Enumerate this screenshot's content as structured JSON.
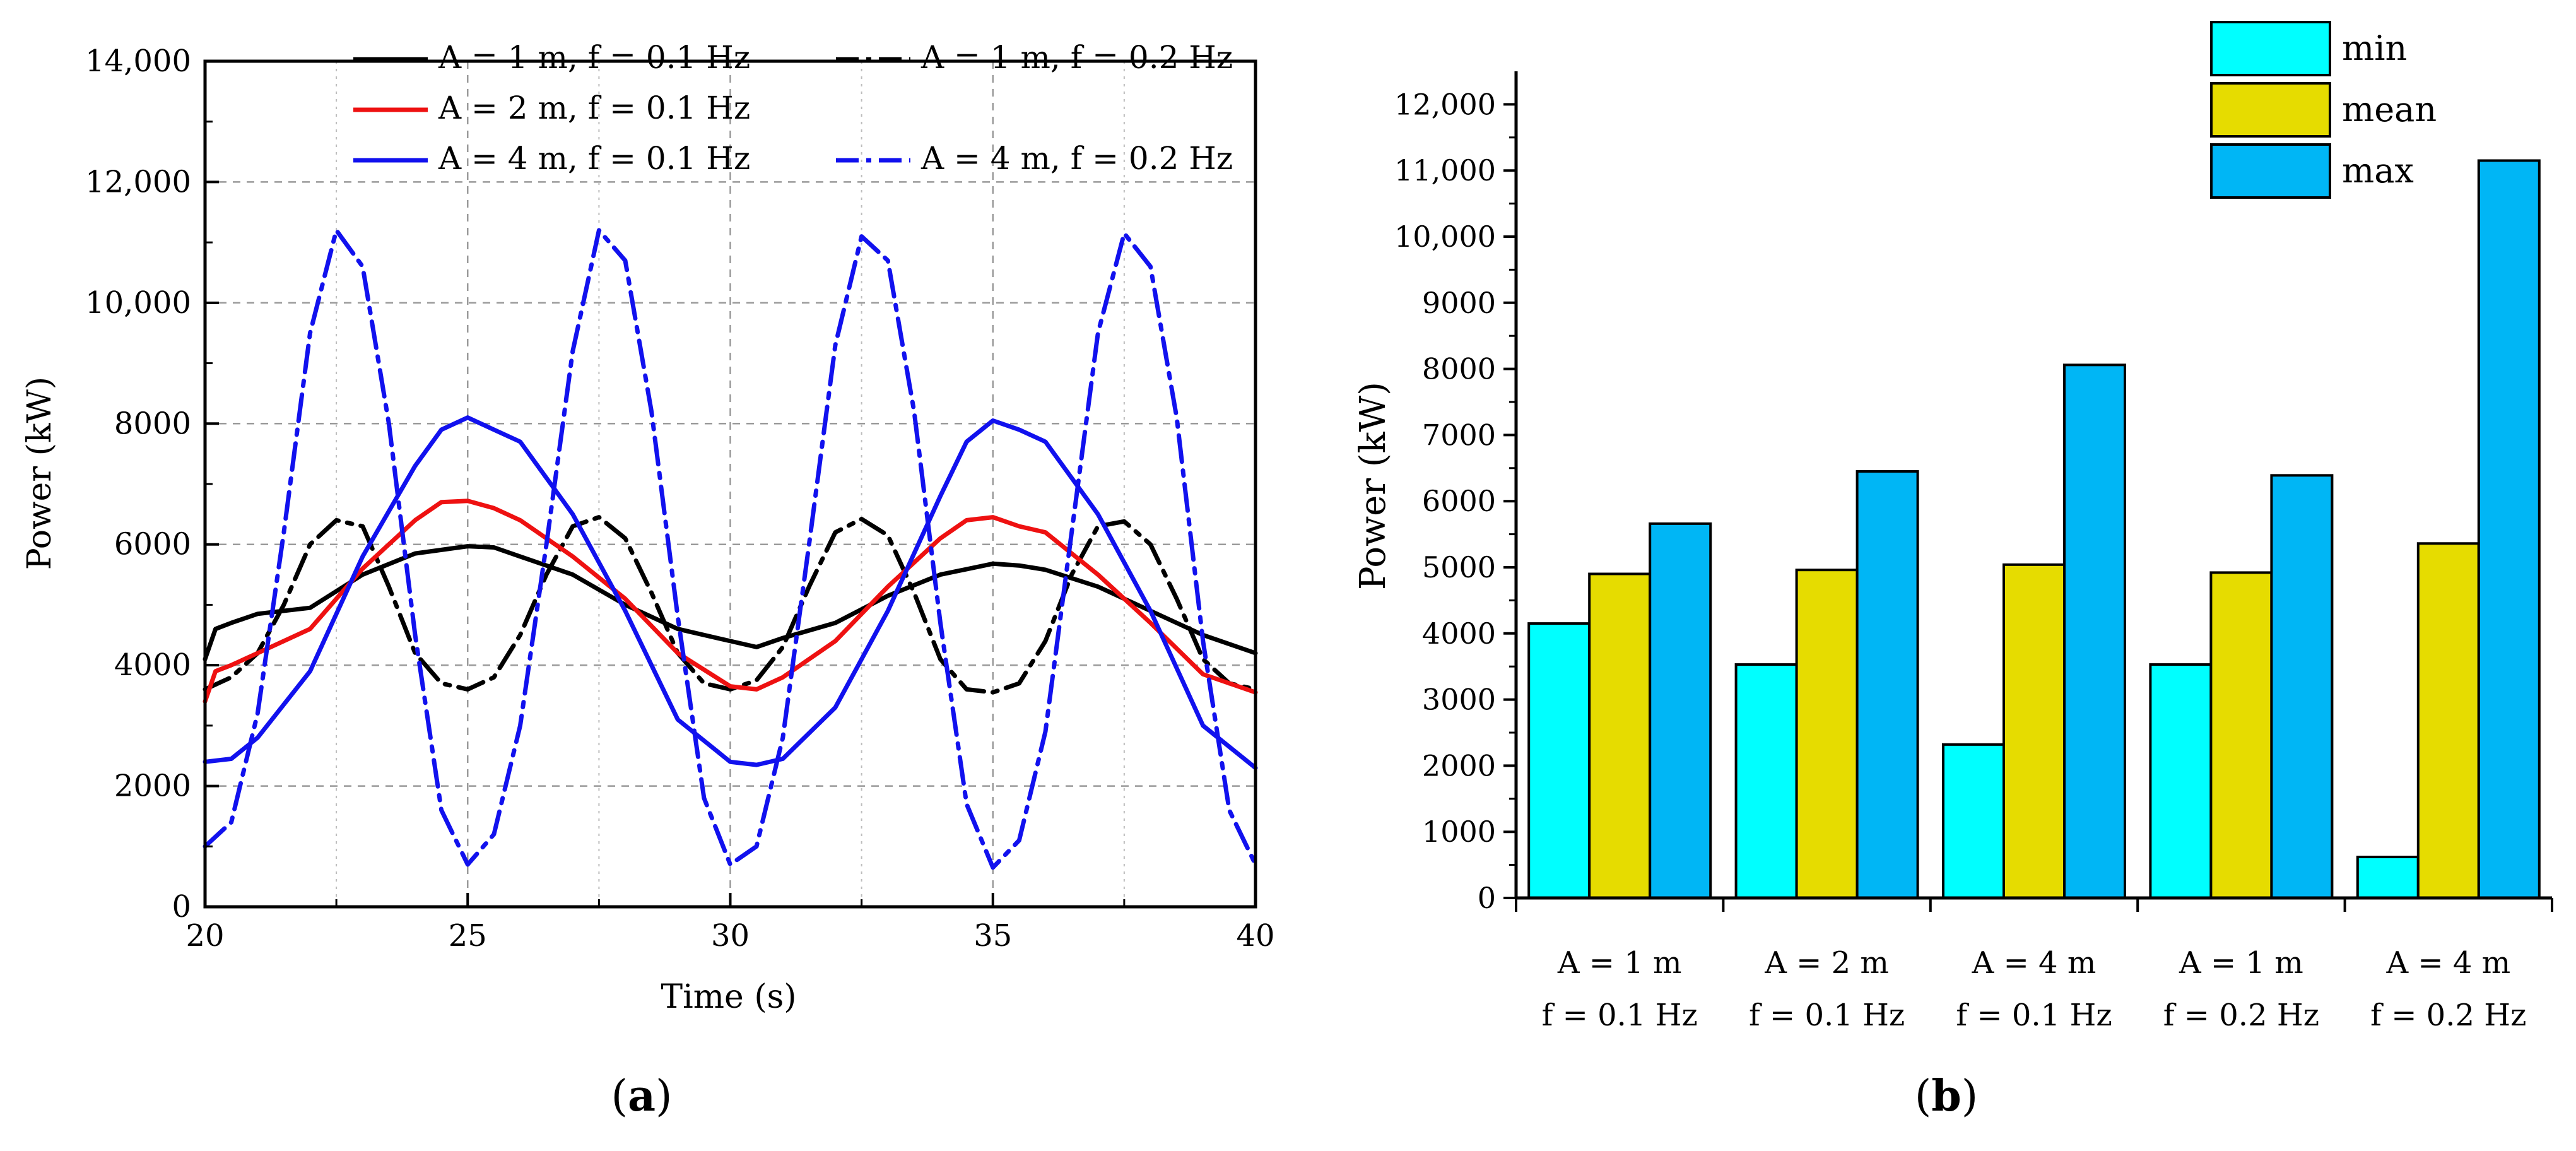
{
  "chart_data": [
    {
      "id": "a",
      "type": "line",
      "panel_label": "a",
      "xlabel": "Time (s)",
      "ylabel": "Power (kW)",
      "xlim": [
        20,
        40
      ],
      "ylim": [
        0,
        14000
      ],
      "xticks": [
        20,
        25,
        30,
        35,
        40
      ],
      "xtick_labels": [
        "20",
        "25",
        "30",
        "35",
        "40"
      ],
      "yticks": [
        0,
        2000,
        4000,
        6000,
        8000,
        10000,
        12000,
        14000
      ],
      "ytick_labels": [
        "0",
        "2000",
        "4000",
        "6000",
        "8000",
        "10,000",
        "12,000",
        "14,000"
      ],
      "grid": true,
      "legend_position": "top",
      "series": [
        {
          "name": "A = 1 m, f = 0.1 Hz",
          "color": "#000000",
          "style": "solid",
          "x": [
            20,
            20.2,
            20.5,
            21,
            22,
            23,
            24,
            25,
            25.5,
            26,
            27,
            28,
            29,
            30,
            30.5,
            31,
            32,
            33,
            34,
            35,
            35.5,
            36,
            37,
            38,
            39,
            40
          ],
          "y": [
            4100,
            4600,
            4700,
            4850,
            4950,
            5500,
            5850,
            5970,
            5950,
            5800,
            5500,
            5000,
            4600,
            4400,
            4300,
            4450,
            4700,
            5150,
            5500,
            5680,
            5650,
            5580,
            5300,
            4900,
            4500,
            4200
          ]
        },
        {
          "name": "A = 1 m, f = 0.2 Hz",
          "color": "#000000",
          "style": "dashdot",
          "x": [
            20,
            20.5,
            21,
            21.5,
            22,
            22.5,
            23,
            23.5,
            24,
            24.5,
            25,
            25.5,
            26,
            26.5,
            27,
            27.5,
            28,
            28.5,
            29,
            29.5,
            30,
            30.5,
            31,
            31.5,
            32,
            32.5,
            33,
            33.5,
            34,
            34.5,
            35,
            35.5,
            36,
            36.5,
            37,
            37.5,
            38,
            38.5,
            39,
            39.5,
            40
          ],
          "y": [
            3600,
            3800,
            4200,
            5000,
            6000,
            6400,
            6300,
            5300,
            4200,
            3700,
            3600,
            3800,
            4500,
            5500,
            6300,
            6450,
            6100,
            5200,
            4200,
            3700,
            3600,
            3750,
            4300,
            5300,
            6200,
            6420,
            6150,
            5200,
            4100,
            3600,
            3550,
            3700,
            4400,
            5500,
            6300,
            6380,
            6000,
            5100,
            4100,
            3700,
            3600
          ]
        },
        {
          "name": "A = 2 m, f = 0.1 Hz",
          "color": "#ee1111",
          "style": "solid",
          "x": [
            20,
            20.2,
            20.5,
            21,
            22,
            23,
            24,
            24.5,
            25,
            25.5,
            26,
            27,
            28,
            29,
            30,
            30.5,
            31,
            32,
            33,
            34,
            34.5,
            35,
            35.5,
            36,
            37,
            38,
            39,
            40
          ],
          "y": [
            3400,
            3900,
            4000,
            4200,
            4600,
            5600,
            6400,
            6700,
            6720,
            6600,
            6400,
            5800,
            5100,
            4200,
            3650,
            3600,
            3800,
            4400,
            5300,
            6100,
            6400,
            6450,
            6300,
            6200,
            5500,
            4700,
            3850,
            3550
          ]
        },
        {
          "name": "A = 4 m, f = 0.1 Hz",
          "color": "#1111ee",
          "style": "solid",
          "x": [
            20,
            20.5,
            21,
            22,
            23,
            24,
            24.5,
            25,
            25.5,
            26,
            27,
            28,
            29,
            30,
            30.5,
            31,
            32,
            33,
            34,
            34.5,
            35,
            35.5,
            36,
            37,
            38,
            39,
            40
          ],
          "y": [
            2400,
            2450,
            2800,
            3900,
            5800,
            7300,
            7900,
            8100,
            7900,
            7700,
            6500,
            4900,
            3100,
            2400,
            2350,
            2450,
            3300,
            4900,
            6800,
            7700,
            8050,
            7900,
            7700,
            6500,
            4900,
            3000,
            2300
          ]
        },
        {
          "name": "A = 4 m, f = 0.2 Hz",
          "color": "#1111ee",
          "style": "dashdot",
          "x": [
            20,
            20.5,
            21,
            21.5,
            22,
            22.5,
            23,
            23.5,
            24,
            24.5,
            25,
            25.5,
            26,
            26.5,
            27,
            27.5,
            28,
            28.5,
            29,
            29.5,
            30,
            30.5,
            31,
            31.5,
            32,
            32.5,
            33,
            33.5,
            34,
            34.5,
            35,
            35.5,
            36,
            36.5,
            37,
            37.5,
            38,
            38.5,
            39,
            39.5,
            40
          ],
          "y": [
            1000,
            1400,
            3200,
            6200,
            9500,
            11200,
            10600,
            8000,
            4500,
            1600,
            700,
            1200,
            3000,
            6000,
            9200,
            11200,
            10700,
            8200,
            4800,
            1800,
            700,
            1000,
            2800,
            6000,
            9300,
            11100,
            10700,
            8200,
            4700,
            1700,
            650,
            1100,
            2900,
            6200,
            9500,
            11150,
            10600,
            8100,
            4400,
            1600,
            700
          ]
        }
      ]
    },
    {
      "id": "b",
      "type": "bar",
      "panel_label": "b",
      "xlabel": "",
      "ylabel": "Power (kW)",
      "ylim": [
        0,
        12500
      ],
      "yticks": [
        0,
        1000,
        2000,
        3000,
        4000,
        5000,
        6000,
        7000,
        8000,
        9000,
        10000,
        11000,
        12000
      ],
      "ytick_labels": [
        "0",
        "1000",
        "2000",
        "3000",
        "4000",
        "5000",
        "6000",
        "7000",
        "8000",
        "9000",
        "10,000",
        "11,000",
        "12,000"
      ],
      "grid": false,
      "legend_position": "top-right",
      "categories": [
        {
          "line1": "A = 1 m",
          "line2": "f = 0.1 Hz"
        },
        {
          "line1": "A = 2 m",
          "line2": "f = 0.1 Hz"
        },
        {
          "line1": "A = 4 m",
          "line2": "f = 0.1 Hz"
        },
        {
          "line1": "A = 1 m",
          "line2": "f = 0.2 Hz"
        },
        {
          "line1": "A = 4 m",
          "line2": "f = 0.2 Hz"
        }
      ],
      "series": [
        {
          "name": "min",
          "color": "#00ffff",
          "values": [
            4150,
            3530,
            2320,
            3530,
            620
          ]
        },
        {
          "name": "mean",
          "color": "#e6dc00",
          "values": [
            4900,
            4960,
            5040,
            4920,
            5360
          ]
        },
        {
          "name": "max",
          "color": "#00b6f5",
          "values": [
            5660,
            6450,
            8060,
            6390,
            11150
          ]
        }
      ]
    }
  ]
}
